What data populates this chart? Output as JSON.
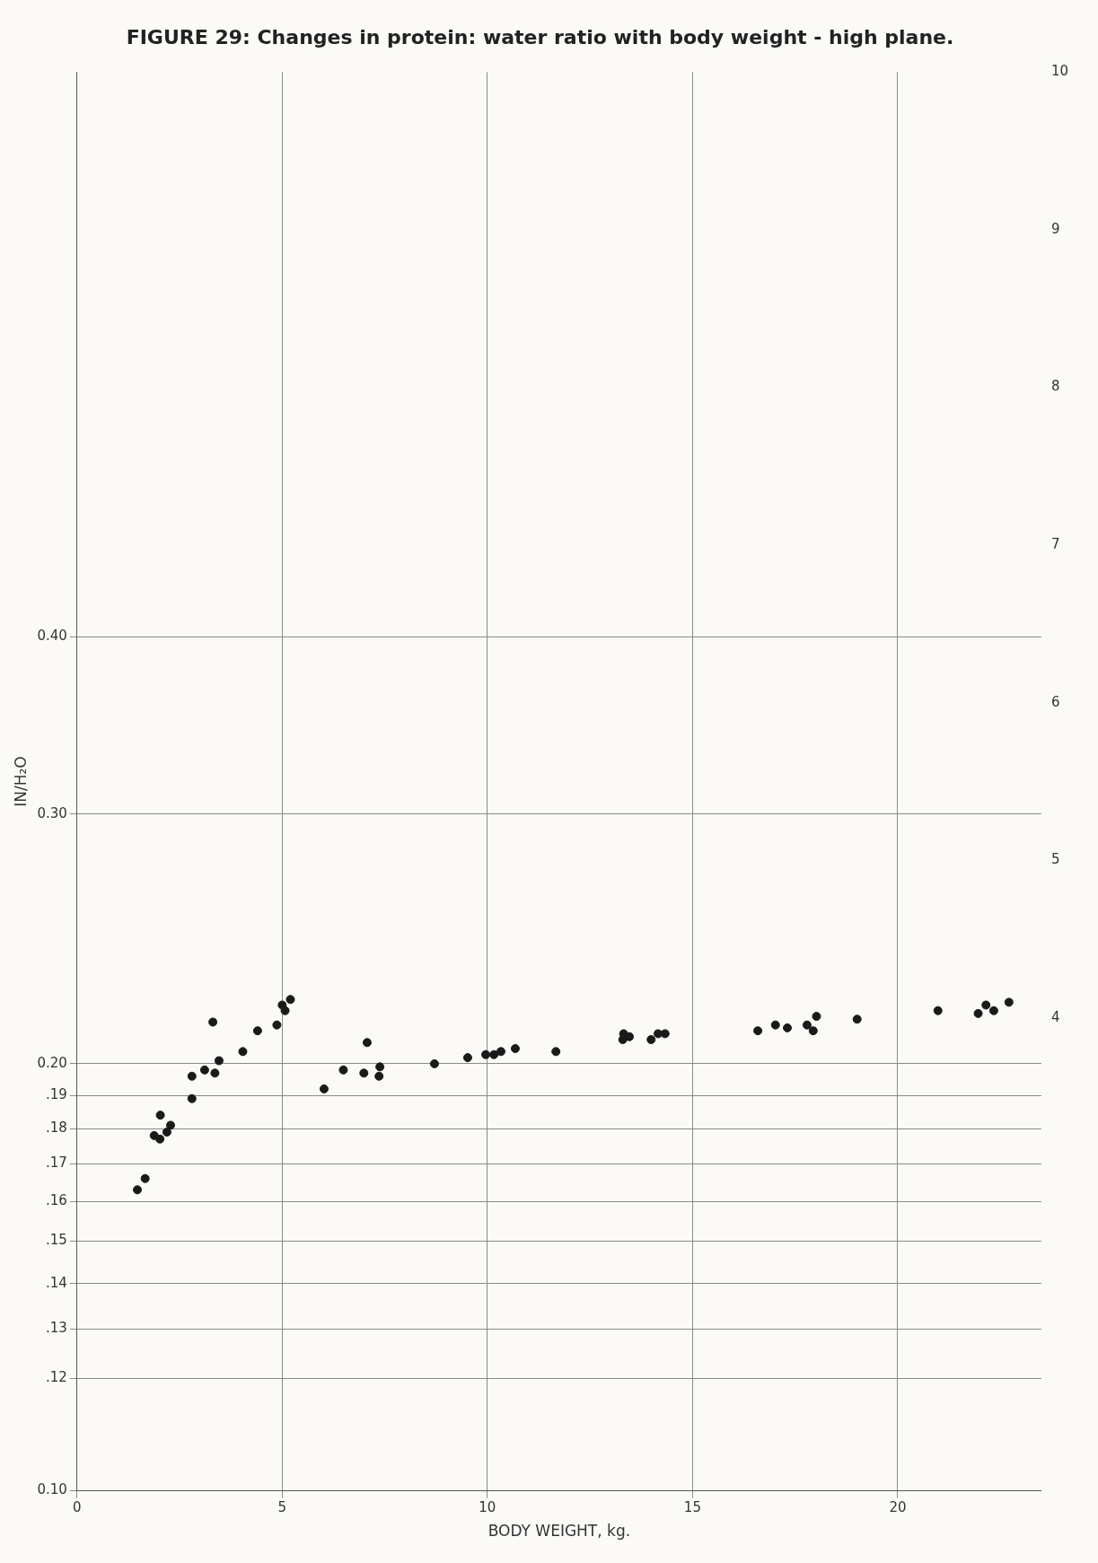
{
  "chart_data": {
    "type": "scatter",
    "title": "FIGURE 29: Changes in protein: water ratio with body weight - high plane.",
    "xlabel": "BODY WEIGHT, kg.",
    "ylabel": "IN/H₂O",
    "log": "y",
    "grid": true,
    "legend": false,
    "marker": "circle",
    "xlim": [
      0,
      23.5
    ],
    "xticks": [
      0,
      5,
      10,
      15,
      20
    ],
    "ylim": [
      0.1,
      1.0
    ],
    "yticks": [
      {
        "value": 0.1,
        "label": "0.10"
      },
      {
        "value": 0.12,
        "label": ".12"
      },
      {
        "value": 0.13,
        "label": ".13"
      },
      {
        "value": 0.14,
        "label": ".14"
      },
      {
        "value": 0.15,
        "label": ".15"
      },
      {
        "value": 0.16,
        "label": ".16"
      },
      {
        "value": 0.17,
        "label": ".17"
      },
      {
        "value": 0.18,
        "label": ".18"
      },
      {
        "value": 0.19,
        "label": ".19"
      },
      {
        "value": 0.2,
        "label": "0.20"
      },
      {
        "value": 0.3,
        "label": "0.30"
      },
      {
        "value": 0.4,
        "label": "0.40"
      }
    ],
    "y2lim": [
      1,
      10
    ],
    "y2ticks": [
      4,
      5,
      6,
      7,
      8,
      9,
      10
    ],
    "series": [
      {
        "color": "#1a1a1a",
        "x": [
          1.47,
          1.66,
          1.88,
          2.02,
          2.03,
          2.19,
          2.28,
          2.8,
          2.8,
          3.11,
          3.36,
          3.31,
          3.46,
          4.04,
          4.4,
          4.87,
          5.0,
          5.07,
          5.2,
          6.02,
          6.49,
          6.99,
          7.07,
          7.36,
          7.38,
          8.71,
          9.52,
          9.96,
          10.16,
          10.33,
          10.68,
          11.67,
          13.32,
          13.3,
          13.46,
          13.99,
          14.16,
          14.33,
          16.59,
          17.02,
          17.31,
          17.79,
          17.94,
          18.02,
          19.01,
          20.98,
          21.96,
          22.15,
          22.34,
          22.71
        ],
        "values": [
          0.163,
          0.166,
          0.178,
          0.177,
          0.184,
          0.179,
          0.181,
          0.189,
          0.196,
          0.198,
          0.197,
          0.214,
          0.201,
          0.204,
          0.211,
          0.213,
          0.22,
          0.218,
          0.222,
          0.192,
          0.198,
          0.197,
          0.207,
          0.196,
          0.199,
          0.2,
          0.202,
          0.203,
          0.203,
          0.204,
          0.205,
          0.204,
          0.21,
          0.208,
          0.209,
          0.208,
          0.21,
          0.21,
          0.211,
          0.213,
          0.212,
          0.213,
          0.211,
          0.216,
          0.215,
          0.218,
          0.217,
          0.22,
          0.218,
          0.221
        ]
      }
    ]
  }
}
